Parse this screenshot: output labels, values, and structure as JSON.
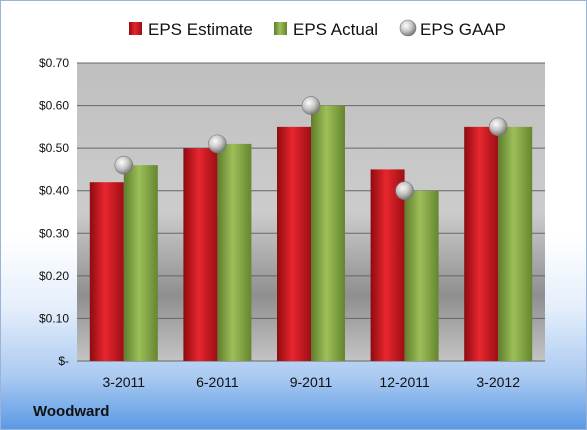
{
  "company": "Woodward",
  "colors": {
    "estimate": "#c8141c",
    "actual": "#8aab4a",
    "gaap": "#b8b8b8"
  },
  "chart_data": {
    "type": "bar",
    "categories": [
      "3-2011",
      "6-2011",
      "9-2011",
      "12-2011",
      "3-2012"
    ],
    "series": [
      {
        "name": "EPS Estimate",
        "type": "bar",
        "values": [
          0.42,
          0.5,
          0.55,
          0.45,
          0.55
        ]
      },
      {
        "name": "EPS Actual",
        "type": "bar",
        "values": [
          0.46,
          0.51,
          0.6,
          0.4,
          0.55
        ]
      },
      {
        "name": "EPS GAAP",
        "type": "scatter",
        "values": [
          0.46,
          0.51,
          0.6,
          0.4,
          0.55
        ]
      }
    ],
    "yticks": [
      0,
      0.1,
      0.2,
      0.3,
      0.4,
      0.5,
      0.6,
      0.7
    ],
    "ytick_labels": [
      "$-",
      "$0.10",
      "$0.20",
      "$0.30",
      "$0.40",
      "$0.50",
      "$0.60",
      "$0.70"
    ],
    "ylim": [
      0,
      0.7
    ],
    "grid": true,
    "legend_position": "top"
  }
}
